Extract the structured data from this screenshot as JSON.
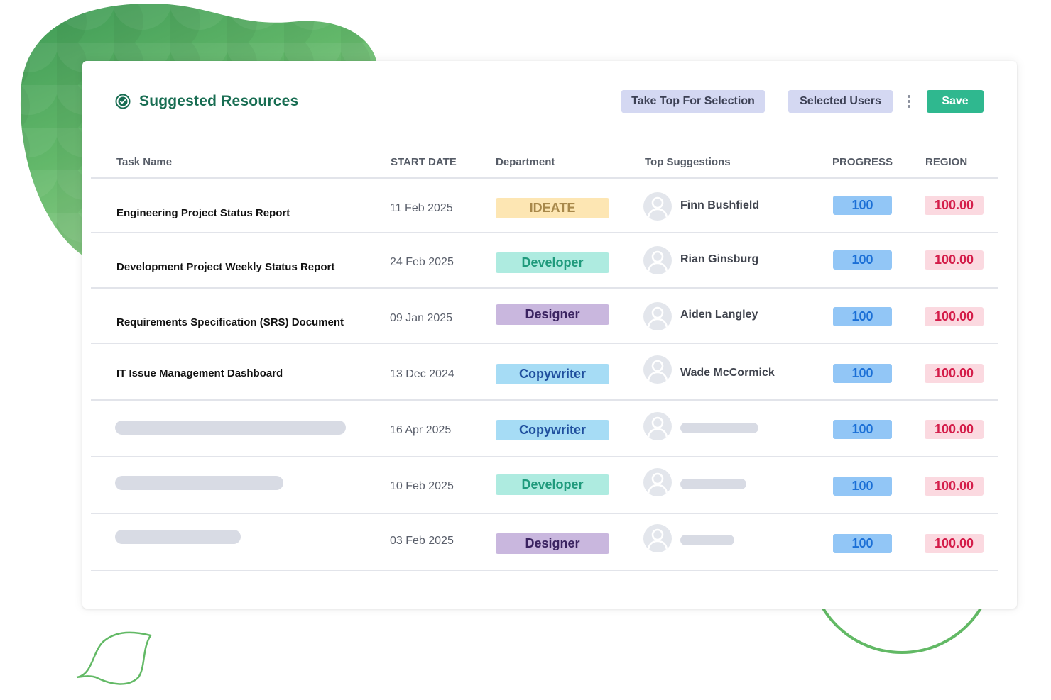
{
  "panel": {
    "title": "Suggested Resources",
    "actions": {
      "take_top_label": "Take Top For Selection",
      "selected_users_label": "Selected Users",
      "more_icon": "kebab-vertical-icon",
      "save_label": "Save"
    }
  },
  "table": {
    "columns": {
      "task": "Task Name",
      "start_date": "START DATE",
      "department": "Department",
      "suggestions": "Top Suggestions",
      "progress": "PROGRESS",
      "region": "REGION"
    },
    "rows": [
      {
        "task": "Engineering Project Status Report",
        "start_date": "11 Feb 2025",
        "department": "IDEATE",
        "suggestion": "Finn Bushfield",
        "progress": "100",
        "region": "100.00"
      },
      {
        "task": "Development Project Weekly Status Report",
        "start_date": "24 Feb 2025",
        "department": "Developer",
        "suggestion": "Rian Ginsburg",
        "progress": "100",
        "region": "100.00"
      },
      {
        "task": "Requirements Specification (SRS) Document",
        "start_date": "09 Jan 2025",
        "department": "Designer",
        "suggestion": "Aiden Langley",
        "progress": "100",
        "region": "100.00"
      },
      {
        "task": "IT Issue Management Dashboard",
        "start_date": "13 Dec 2024",
        "department": "Copywriter",
        "suggestion": "Wade McCormick",
        "progress": "100",
        "region": "100.00"
      },
      {
        "task": "",
        "start_date": "16 Apr 2025",
        "department": "Copywriter",
        "suggestion": "",
        "progress": "100",
        "region": "100.00"
      },
      {
        "task": "",
        "start_date": "10 Feb 2025",
        "department": "Developer",
        "suggestion": "",
        "progress": "100",
        "region": "100.00"
      },
      {
        "task": "",
        "start_date": "03 Feb 2025",
        "department": "Designer",
        "suggestion": "",
        "progress": "100",
        "region": "100.00"
      }
    ]
  },
  "colors": {
    "title": "#186d52",
    "save": "#2fb88f",
    "action_button": "#d4d8f2",
    "progress_bg": "#92c6f6",
    "progress_text": "#1b6fd6",
    "region_bg": "#fbd9e0",
    "region_text": "#d41d4a",
    "dept_ideate": "#fde6b3",
    "dept_developer": "#aeebe0",
    "dept_designer": "#c9b7de",
    "dept_copywriter": "#a6dcf5"
  }
}
